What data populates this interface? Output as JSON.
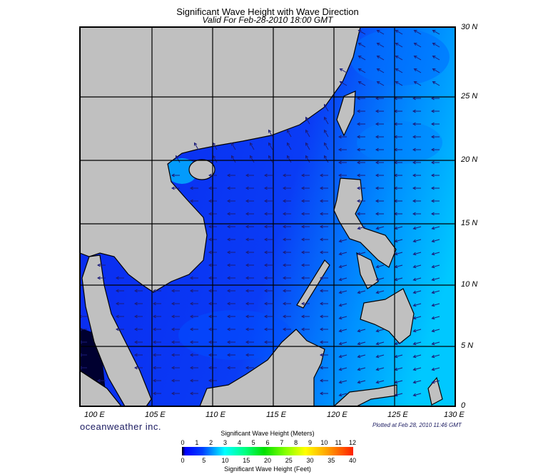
{
  "title": "Significant Wave Height with Wave Direction",
  "subtitle": "Valid For Feb-28-2010 18:00 GMT",
  "lon_labels": [
    "100 E",
    "105 E",
    "110 E",
    "115 E",
    "120 E",
    "125 E",
    "130 E"
  ],
  "lat_labels": [
    "30 N",
    "25 N",
    "20 N",
    "15 N",
    "10 N",
    "5 N",
    "0"
  ],
  "brand": "oceanweather inc.",
  "plotted": "Plotted at Feb 28, 2010 11:46 GMT",
  "legend": {
    "meters_title": "Significant Wave Height (Meters)",
    "feet_title": "Significant Wave Height (Feet)",
    "meters_ticks": [
      "0",
      "1",
      "2",
      "3",
      "4",
      "5",
      "6",
      "7",
      "8",
      "9",
      "10",
      "11",
      "12"
    ],
    "feet_ticks": [
      "0",
      "5",
      "10",
      "15",
      "20",
      "25",
      "30",
      "35",
      "40"
    ]
  },
  "colors": {
    "land": "#c0c0c0",
    "sea_low": "#0a28f0",
    "sea_mid": "#0064ff",
    "sea_high": "#00c8ff",
    "arrow": "#1c1c7a"
  }
}
